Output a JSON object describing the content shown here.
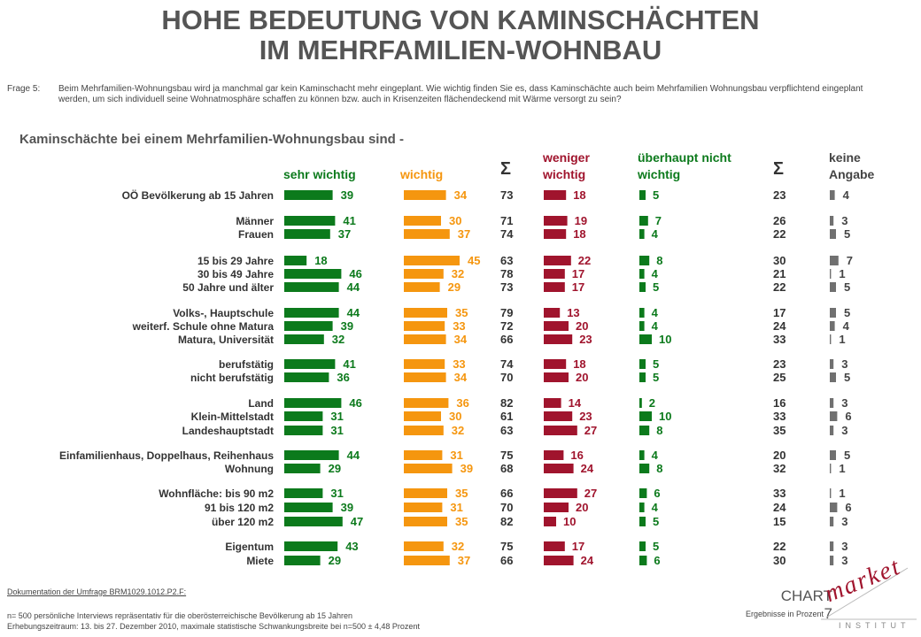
{
  "title_line1": "HOHE BEDEUTUNG VON KAMINSCHÄCHTEN",
  "title_line2": "IM MEHRFAMILIEN-WOHNBAU",
  "question_label": "Frage 5:",
  "question_text": "Beim Mehrfamilien-Wohnungsbau wird ja manchmal gar kein Kaminschacht mehr eingeplant. Wie wichtig finden Sie es, dass Kaminschächte auch beim Mehrfamilien Wohnungsbau verpflichtend eingeplant werden, um sich individuell seine Wohnatmosphäre schaffen zu können bzw. auch in Krisenzeiten flächendeckend mit Wärme versorgt zu sein?",
  "subtitle": "Kaminschächte bei einem Mehrfamilien-Wohnungsbau sind -",
  "headers": {
    "sehr_wichtig": "sehr wichtig",
    "wichtig": "wichtig",
    "sigma1": "Σ",
    "weniger_l1": "weniger",
    "weniger_l2": "wichtig",
    "ueberhaupt_l1": "überhaupt nicht",
    "ueberhaupt_l2": "wichtig",
    "sigma2": "Σ",
    "keine_l1": "keine",
    "keine_l2": "Angabe"
  },
  "colors": {
    "sehr_wichtig": "#0c7a1c",
    "wichtig": "#f5960f",
    "weniger": "#a0142d",
    "ueberhaupt": "#0c7a1c",
    "keine": "#707070"
  },
  "chart_data": {
    "type": "bar",
    "series_names": [
      "sehr wichtig",
      "wichtig",
      "Σ",
      "weniger wichtig",
      "überhaupt nicht wichtig",
      "Σ",
      "keine Angabe"
    ],
    "rows": [
      {
        "label": "OÖ Bevölkerung ab 15 Jahren",
        "values": [
          39,
          34,
          73,
          18,
          5,
          23,
          4
        ]
      },
      {
        "label": "Männer",
        "values": [
          41,
          30,
          71,
          19,
          7,
          26,
          3
        ]
      },
      {
        "label": "Frauen",
        "values": [
          37,
          37,
          74,
          18,
          4,
          22,
          5
        ]
      },
      {
        "label": "15 bis 29 Jahre",
        "values": [
          18,
          45,
          63,
          22,
          8,
          30,
          7
        ]
      },
      {
        "label": "30 bis 49 Jahre",
        "values": [
          46,
          32,
          78,
          17,
          4,
          21,
          1
        ]
      },
      {
        "label": "50 Jahre und älter",
        "values": [
          44,
          29,
          73,
          17,
          5,
          22,
          5
        ]
      },
      {
        "label": "Volks-, Hauptschule",
        "values": [
          44,
          35,
          79,
          13,
          4,
          17,
          5
        ]
      },
      {
        "label": "weiterf. Schule ohne Matura",
        "values": [
          39,
          33,
          72,
          20,
          4,
          24,
          4
        ]
      },
      {
        "label": "Matura, Universität",
        "values": [
          32,
          34,
          66,
          23,
          10,
          33,
          1
        ]
      },
      {
        "label": "berufstätig",
        "values": [
          41,
          33,
          74,
          18,
          5,
          23,
          3
        ]
      },
      {
        "label": "nicht berufstätig",
        "values": [
          36,
          34,
          70,
          20,
          5,
          25,
          5
        ]
      },
      {
        "label": "Land",
        "values": [
          46,
          36,
          82,
          14,
          2,
          16,
          3
        ]
      },
      {
        "label": "Klein-Mittelstadt",
        "values": [
          31,
          30,
          61,
          23,
          10,
          33,
          6
        ]
      },
      {
        "label": "Landeshauptstadt",
        "values": [
          31,
          32,
          63,
          27,
          8,
          35,
          3
        ]
      },
      {
        "label": "Einfamilienhaus, Doppelhaus, Reihenhaus",
        "values": [
          44,
          31,
          75,
          16,
          4,
          20,
          5
        ]
      },
      {
        "label": "Wohnung",
        "values": [
          29,
          39,
          68,
          24,
          8,
          32,
          1
        ]
      },
      {
        "label": "Wohnfläche: bis 90 m2",
        "values": [
          31,
          35,
          66,
          27,
          6,
          33,
          1
        ]
      },
      {
        "label": "91 bis 120 m2",
        "values": [
          39,
          31,
          70,
          20,
          4,
          24,
          6
        ]
      },
      {
        "label": "über 120 m2",
        "values": [
          47,
          35,
          82,
          10,
          5,
          15,
          3
        ]
      },
      {
        "label": "Eigentum",
        "values": [
          43,
          32,
          75,
          17,
          5,
          22,
          3
        ]
      },
      {
        "label": "Miete",
        "values": [
          29,
          37,
          66,
          24,
          6,
          30,
          3
        ]
      }
    ]
  },
  "footer": {
    "doku": "Dokumentation der Umfrage BRM1029.1012.P2.F:",
    "line1": "n= 500 persönliche Interviews repräsentativ für die oberösterreichische Bevölkerung ab 15 Jahren",
    "line2": "Erhebungszeitraum: 13. bis 27. Dezember 2010, maximale statistische Schwankungsbreite bei n=500 ± 4,48 Prozent",
    "chart_no": "CHART 7",
    "ergebnisse": "Ergebnisse in Prozent"
  },
  "logo": {
    "word": "market",
    "institut": "INSTITUT"
  }
}
